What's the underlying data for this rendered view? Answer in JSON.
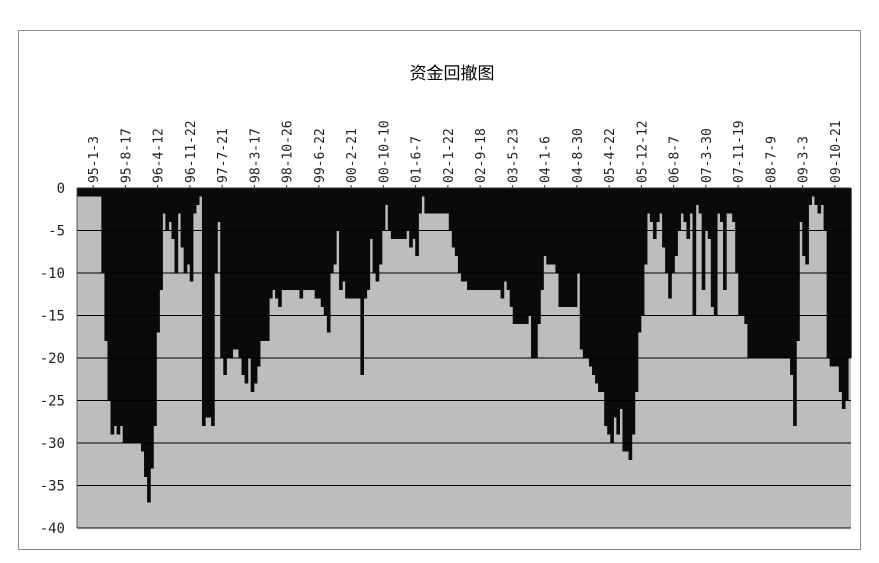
{
  "chart_data": {
    "type": "area",
    "title": "资金回撤图",
    "xlabel": "",
    "ylabel": "",
    "ylim": [
      -40,
      0
    ],
    "yticks": [
      0,
      -5,
      -10,
      -15,
      -20,
      -25,
      -30,
      -35,
      -40
    ],
    "xtick_labels": [
      "95-1-3",
      "95-8-17",
      "96-4-12",
      "96-11-22",
      "97-7-21",
      "98-3-17",
      "98-10-26",
      "99-6-22",
      "00-2-21",
      "00-10-10",
      "01-6-7",
      "02-1-22",
      "02-9-18",
      "03-5-23",
      "04-1-6",
      "04-8-30",
      "05-4-22",
      "05-12-12",
      "06-8-7",
      "07-3-30",
      "07-11-19",
      "08-7-9",
      "09-3-3",
      "09-10-21"
    ],
    "x_axis_position": "top",
    "grid": true,
    "colors": {
      "fill": "#0a0a0a",
      "plot_background": "#bdbdbd",
      "grid": "#000000"
    },
    "series": [
      {
        "values": [
          -1,
          -1,
          -1,
          -1,
          -1,
          -1,
          -1,
          -1,
          -10,
          -18,
          -25,
          -29,
          -28,
          -29,
          -28,
          -30,
          -30,
          -30,
          -30,
          -30,
          -30,
          -31,
          -34,
          -37,
          -33,
          -28,
          -17,
          -12,
          -3,
          -5,
          -4,
          -6,
          -10,
          -3,
          -7,
          -10,
          -9,
          -11,
          -3,
          -2,
          -1,
          -28,
          -27,
          -27,
          -28,
          -10,
          -4,
          -20,
          -22,
          -20,
          -20,
          -19,
          -19,
          -20,
          -22,
          -23,
          -20,
          -24,
          -23,
          -21,
          -18,
          -18,
          -18,
          -13,
          -12,
          -13,
          -14,
          -12,
          -12,
          -12,
          -12,
          -12,
          -12,
          -13,
          -12,
          -12,
          -12,
          -12,
          -13,
          -13,
          -14,
          -15,
          -17,
          -10,
          -9,
          -5,
          -12,
          -11,
          -13,
          -13,
          -13,
          -13,
          -13,
          -22,
          -13,
          -12,
          -6,
          -10,
          -11,
          -9,
          -5,
          -2,
          -5,
          -6,
          -6,
          -6,
          -6,
          -6,
          -5,
          -7,
          -6,
          -8,
          -3,
          -1,
          -3,
          -3,
          -3,
          -3,
          -3,
          -3,
          -3,
          -3,
          -5,
          -7,
          -8,
          -10,
          -11,
          -11,
          -12,
          -12,
          -12,
          -12,
          -12,
          -12,
          -12,
          -12,
          -12,
          -12,
          -12,
          -13,
          -11,
          -12,
          -14,
          -16,
          -16,
          -16,
          -16,
          -16,
          -15,
          -20,
          -20,
          -16,
          -12,
          -8,
          -9,
          -9,
          -9,
          -10,
          -14,
          -14,
          -14,
          -14,
          -14,
          -14,
          -10,
          -19,
          -20,
          -20,
          -21,
          -22,
          -23,
          -24,
          -24,
          -28,
          -29,
          -30,
          -27,
          -29,
          -26,
          -31,
          -31,
          -32,
          -29,
          -24,
          -17,
          -15,
          -9,
          -3,
          -4,
          -6,
          -4,
          -3,
          -7,
          -10,
          -13,
          -10,
          -8,
          -5,
          -3,
          -4,
          -6,
          -3,
          -15,
          -2,
          -3,
          -12,
          -5,
          -6,
          -14,
          -15,
          -3,
          -4,
          -12,
          -3,
          -3,
          -4,
          -10,
          -15,
          -15,
          -16,
          -20,
          -20,
          -20,
          -20,
          -20,
          -20,
          -20,
          -20,
          -20,
          -20,
          -20,
          -20,
          -20,
          -20,
          -22,
          -28,
          -18,
          -4,
          -8,
          -9,
          -2,
          -1,
          -2,
          -3,
          -2,
          -5,
          -20,
          -21,
          -21,
          -21,
          -24,
          -26,
          -25,
          -20
        ]
      }
    ]
  }
}
